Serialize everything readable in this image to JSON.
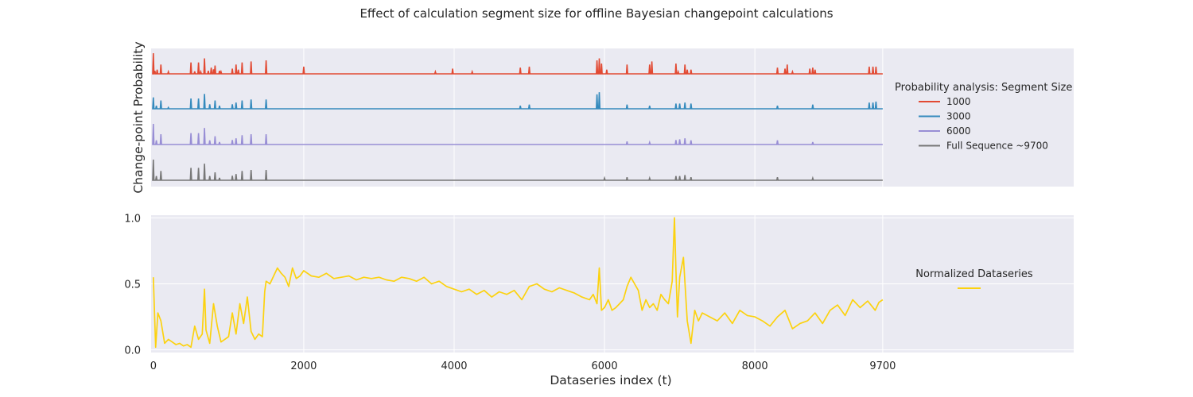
{
  "chart_data": [
    {
      "type": "line",
      "title": "Effect of calculation segment size for offline Bayesian changepoint calculations",
      "ylabel": "Change-point Probability",
      "legend_title": "Probability analysis: Segment Size",
      "legend_position": "right",
      "grid": true,
      "x_range": [
        -30,
        12240
      ],
      "series": [
        {
          "name": "1000",
          "color": "#e24a33",
          "spikes": [
            [
              0,
              1.0
            ],
            [
              20,
              0.15
            ],
            [
              50,
              0.2
            ],
            [
              100,
              0.45
            ],
            [
              200,
              0.1
            ],
            [
              500,
              0.55
            ],
            [
              550,
              0.12
            ],
            [
              600,
              0.55
            ],
            [
              630,
              0.1
            ],
            [
              680,
              0.75
            ],
            [
              730,
              0.15
            ],
            [
              770,
              0.3
            ],
            [
              800,
              0.22
            ],
            [
              820,
              0.4
            ],
            [
              880,
              0.15
            ],
            [
              900,
              0.1
            ],
            [
              1050,
              0.25
            ],
            [
              1100,
              0.45
            ],
            [
              1130,
              0.2
            ],
            [
              1180,
              0.55
            ],
            [
              1300,
              0.6
            ],
            [
              1500,
              0.65
            ],
            [
              2000,
              0.35
            ],
            [
              3750,
              0.1
            ],
            [
              3980,
              0.25
            ],
            [
              4240,
              0.1
            ],
            [
              4880,
              0.3
            ],
            [
              5000,
              0.35
            ],
            [
              5900,
              0.65
            ],
            [
              5930,
              0.75
            ],
            [
              5960,
              0.5
            ],
            [
              6030,
              0.2
            ],
            [
              6300,
              0.45
            ],
            [
              6600,
              0.45
            ],
            [
              6630,
              0.6
            ],
            [
              6950,
              0.5
            ],
            [
              6980,
              0.1
            ],
            [
              7070,
              0.45
            ],
            [
              7100,
              0.2
            ],
            [
              7150,
              0.2
            ],
            [
              8300,
              0.3
            ],
            [
              8400,
              0.25
            ],
            [
              8430,
              0.45
            ],
            [
              8500,
              0.1
            ],
            [
              8730,
              0.25
            ],
            [
              8770,
              0.3
            ],
            [
              8800,
              0.2
            ],
            [
              9520,
              0.35
            ],
            [
              9570,
              0.35
            ],
            [
              9610,
              0.35
            ]
          ]
        },
        {
          "name": "3000",
          "color": "#348abd",
          "spikes": [
            [
              0,
              0.55
            ],
            [
              40,
              0.15
            ],
            [
              100,
              0.4
            ],
            [
              200,
              0.06
            ],
            [
              500,
              0.5
            ],
            [
              600,
              0.5
            ],
            [
              680,
              0.72
            ],
            [
              750,
              0.22
            ],
            [
              820,
              0.4
            ],
            [
              880,
              0.15
            ],
            [
              1050,
              0.22
            ],
            [
              1100,
              0.3
            ],
            [
              1180,
              0.4
            ],
            [
              1300,
              0.45
            ],
            [
              1500,
              0.45
            ],
            [
              4880,
              0.15
            ],
            [
              5000,
              0.2
            ],
            [
              5900,
              0.7
            ],
            [
              5930,
              0.8
            ],
            [
              6300,
              0.2
            ],
            [
              6600,
              0.15
            ],
            [
              6950,
              0.25
            ],
            [
              7000,
              0.25
            ],
            [
              7070,
              0.3
            ],
            [
              7150,
              0.25
            ],
            [
              8300,
              0.15
            ],
            [
              8770,
              0.2
            ],
            [
              9520,
              0.3
            ],
            [
              9570,
              0.3
            ],
            [
              9610,
              0.35
            ]
          ]
        },
        {
          "name": "6000",
          "color": "#988ed5",
          "spikes": [
            [
              0,
              1.0
            ],
            [
              40,
              0.2
            ],
            [
              100,
              0.5
            ],
            [
              500,
              0.55
            ],
            [
              600,
              0.55
            ],
            [
              680,
              0.8
            ],
            [
              750,
              0.2
            ],
            [
              820,
              0.4
            ],
            [
              880,
              0.12
            ],
            [
              1050,
              0.22
            ],
            [
              1100,
              0.3
            ],
            [
              1180,
              0.45
            ],
            [
              1300,
              0.5
            ],
            [
              1500,
              0.5
            ],
            [
              6300,
              0.15
            ],
            [
              6600,
              0.1
            ],
            [
              6950,
              0.22
            ],
            [
              7000,
              0.25
            ],
            [
              7070,
              0.3
            ],
            [
              7150,
              0.2
            ],
            [
              8300,
              0.2
            ],
            [
              8770,
              0.12
            ]
          ]
        },
        {
          "name": "Full Sequence ~9700",
          "color": "#777777",
          "spikes": [
            [
              0,
              1.0
            ],
            [
              40,
              0.2
            ],
            [
              100,
              0.45
            ],
            [
              500,
              0.6
            ],
            [
              600,
              0.6
            ],
            [
              680,
              0.8
            ],
            [
              750,
              0.2
            ],
            [
              820,
              0.38
            ],
            [
              880,
              0.12
            ],
            [
              1050,
              0.22
            ],
            [
              1100,
              0.3
            ],
            [
              1180,
              0.45
            ],
            [
              1300,
              0.5
            ],
            [
              1500,
              0.5
            ],
            [
              6000,
              0.1
            ],
            [
              6300,
              0.15
            ],
            [
              6600,
              0.1
            ],
            [
              6950,
              0.2
            ],
            [
              7000,
              0.2
            ],
            [
              7070,
              0.25
            ],
            [
              7150,
              0.15
            ],
            [
              8300,
              0.15
            ],
            [
              8770,
              0.1
            ]
          ]
        }
      ]
    },
    {
      "type": "line",
      "xlabel": "Dataseries index (t)",
      "x_ticks": [
        0,
        2000,
        4000,
        6000,
        8000,
        9700
      ],
      "y_ticks": [
        0.0,
        0.5,
        1.0
      ],
      "y_tick_labels": [
        "0.0",
        "0.5",
        "1.0"
      ],
      "x_range": [
        -30,
        12240
      ],
      "y_range": [
        -0.02,
        1.02
      ],
      "grid": true,
      "legend_position": "right",
      "series": [
        {
          "name": "Normalized Dataseries",
          "color": "#fcd20f",
          "x": [
            0,
            30,
            60,
            100,
            150,
            200,
            250,
            300,
            350,
            400,
            450,
            500,
            550,
            600,
            650,
            680,
            700,
            750,
            800,
            850,
            900,
            950,
            1000,
            1050,
            1100,
            1150,
            1200,
            1250,
            1300,
            1350,
            1400,
            1450,
            1480,
            1500,
            1550,
            1600,
            1650,
            1700,
            1750,
            1800,
            1850,
            1900,
            1950,
            2000,
            2100,
            2200,
            2300,
            2400,
            2500,
            2600,
            2700,
            2800,
            2900,
            3000,
            3100,
            3200,
            3300,
            3400,
            3500,
            3600,
            3700,
            3800,
            3900,
            4000,
            4100,
            4200,
            4300,
            4400,
            4500,
            4600,
            4700,
            4800,
            4900,
            5000,
            5100,
            5200,
            5300,
            5400,
            5500,
            5600,
            5700,
            5800,
            5850,
            5900,
            5930,
            5960,
            6000,
            6050,
            6100,
            6150,
            6200,
            6250,
            6300,
            6350,
            6400,
            6450,
            6500,
            6550,
            6600,
            6650,
            6700,
            6750,
            6800,
            6850,
            6900,
            6930,
            6950,
            6970,
            7000,
            7050,
            7100,
            7150,
            7200,
            7250,
            7300,
            7400,
            7500,
            7600,
            7700,
            7800,
            7900,
            8000,
            8100,
            8200,
            8300,
            8400,
            8500,
            8600,
            8700,
            8800,
            8900,
            9000,
            9100,
            9200,
            9300,
            9400,
            9500,
            9600,
            9650,
            9700
          ],
          "y": [
            0.55,
            0.02,
            0.28,
            0.22,
            0.05,
            0.08,
            0.06,
            0.04,
            0.05,
            0.03,
            0.04,
            0.02,
            0.18,
            0.08,
            0.12,
            0.46,
            0.15,
            0.05,
            0.35,
            0.18,
            0.06,
            0.08,
            0.1,
            0.28,
            0.12,
            0.35,
            0.2,
            0.4,
            0.14,
            0.08,
            0.12,
            0.1,
            0.44,
            0.52,
            0.5,
            0.56,
            0.62,
            0.58,
            0.55,
            0.48,
            0.62,
            0.54,
            0.56,
            0.6,
            0.56,
            0.55,
            0.58,
            0.54,
            0.55,
            0.56,
            0.53,
            0.55,
            0.54,
            0.55,
            0.53,
            0.52,
            0.55,
            0.54,
            0.52,
            0.55,
            0.5,
            0.52,
            0.48,
            0.46,
            0.44,
            0.46,
            0.42,
            0.45,
            0.4,
            0.44,
            0.42,
            0.45,
            0.38,
            0.48,
            0.5,
            0.46,
            0.44,
            0.47,
            0.45,
            0.43,
            0.4,
            0.38,
            0.42,
            0.35,
            0.62,
            0.3,
            0.32,
            0.38,
            0.3,
            0.32,
            0.35,
            0.38,
            0.48,
            0.55,
            0.5,
            0.45,
            0.3,
            0.38,
            0.32,
            0.35,
            0.3,
            0.42,
            0.38,
            0.35,
            0.52,
            1.0,
            0.6,
            0.25,
            0.55,
            0.7,
            0.22,
            0.05,
            0.3,
            0.22,
            0.28,
            0.25,
            0.22,
            0.28,
            0.2,
            0.3,
            0.26,
            0.25,
            0.22,
            0.18,
            0.25,
            0.3,
            0.16,
            0.2,
            0.22,
            0.28,
            0.2,
            0.3,
            0.34,
            0.26,
            0.38,
            0.32,
            0.37,
            0.3,
            0.36,
            0.38
          ]
        }
      ]
    }
  ]
}
